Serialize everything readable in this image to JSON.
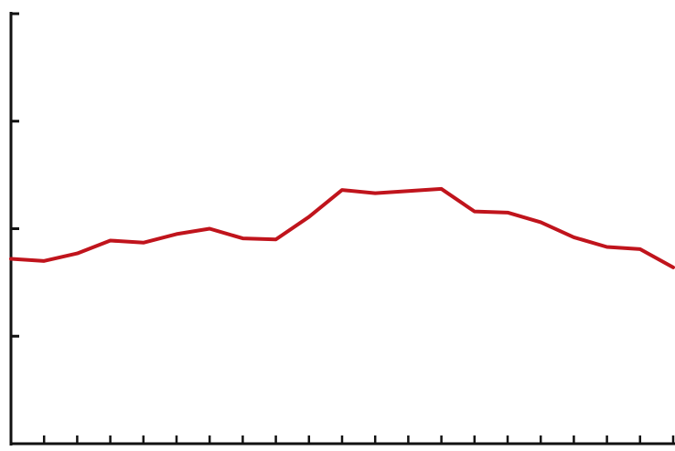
{
  "chart_data": {
    "type": "line",
    "x": [
      0,
      1,
      2,
      3,
      4,
      5,
      6,
      7,
      8,
      9,
      10,
      11,
      12,
      13,
      14,
      15,
      16,
      17,
      18,
      19,
      20
    ],
    "values": [
      1.72,
      1.7,
      1.77,
      1.89,
      1.87,
      1.95,
      2.0,
      1.91,
      1.9,
      2.11,
      2.36,
      2.33,
      2.35,
      2.37,
      2.16,
      2.15,
      2.06,
      1.92,
      1.83,
      1.81,
      1.64
    ],
    "color": "#c0141c",
    "xlim": [
      0,
      20
    ],
    "ylim": [
      0,
      4
    ],
    "xticks": [
      0,
      1,
      2,
      3,
      4,
      5,
      6,
      7,
      8,
      9,
      10,
      11,
      12,
      13,
      14,
      15,
      16,
      17,
      18,
      19,
      20
    ],
    "yticks": [
      0,
      1,
      2,
      3,
      4
    ]
  }
}
